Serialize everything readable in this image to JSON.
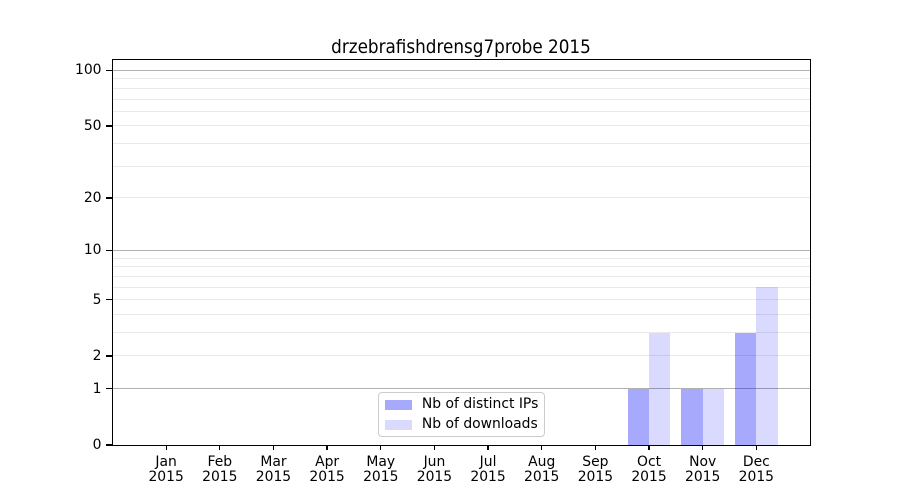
{
  "title": "drzebrafishdrensg7probe 2015",
  "chart_data": {
    "type": "bar",
    "title": "drzebrafishdrensg7probe 2015",
    "categories": [
      "Jan",
      "Feb",
      "Mar",
      "Apr",
      "May",
      "Jun",
      "Jul",
      "Aug",
      "Sep",
      "Oct",
      "Nov",
      "Dec"
    ],
    "category_year": "2015",
    "series": [
      {
        "name": "Nb of distinct IPs",
        "color": "rgba(0,8,245,0.35)",
        "values": [
          0,
          0,
          0,
          0,
          0,
          0,
          0,
          0,
          0,
          1,
          1,
          3
        ]
      },
      {
        "name": "Nb of downloads",
        "color": "rgba(0,8,245,0.15)",
        "values": [
          0,
          0,
          0,
          0,
          0,
          0,
          0,
          0,
          0,
          3,
          1,
          6
        ]
      }
    ],
    "xlabel": "",
    "ylabel": "",
    "yscale": "log1p",
    "ylim": [
      0,
      114
    ],
    "yticks": [
      0,
      1,
      2,
      5,
      10,
      20,
      50,
      100
    ],
    "grid_major": [
      1,
      10,
      100
    ],
    "grid_minor": [
      2,
      3,
      4,
      5,
      6,
      7,
      8,
      9,
      20,
      30,
      40,
      50,
      60,
      70,
      80,
      90
    ],
    "grid": "horizontal",
    "legend_position": "lower center",
    "colors": {
      "grid_major": "#b0b0b0",
      "grid_minor": "#e9e9e9",
      "frame": "#000000",
      "text": "#000000",
      "background": "#ffffff"
    }
  },
  "legend": {
    "items": [
      {
        "label": "Nb of distinct IPs",
        "color": "rgba(0,8,245,0.35)"
      },
      {
        "label": "Nb of downloads",
        "color": "rgba(0,8,245,0.15)"
      }
    ]
  }
}
